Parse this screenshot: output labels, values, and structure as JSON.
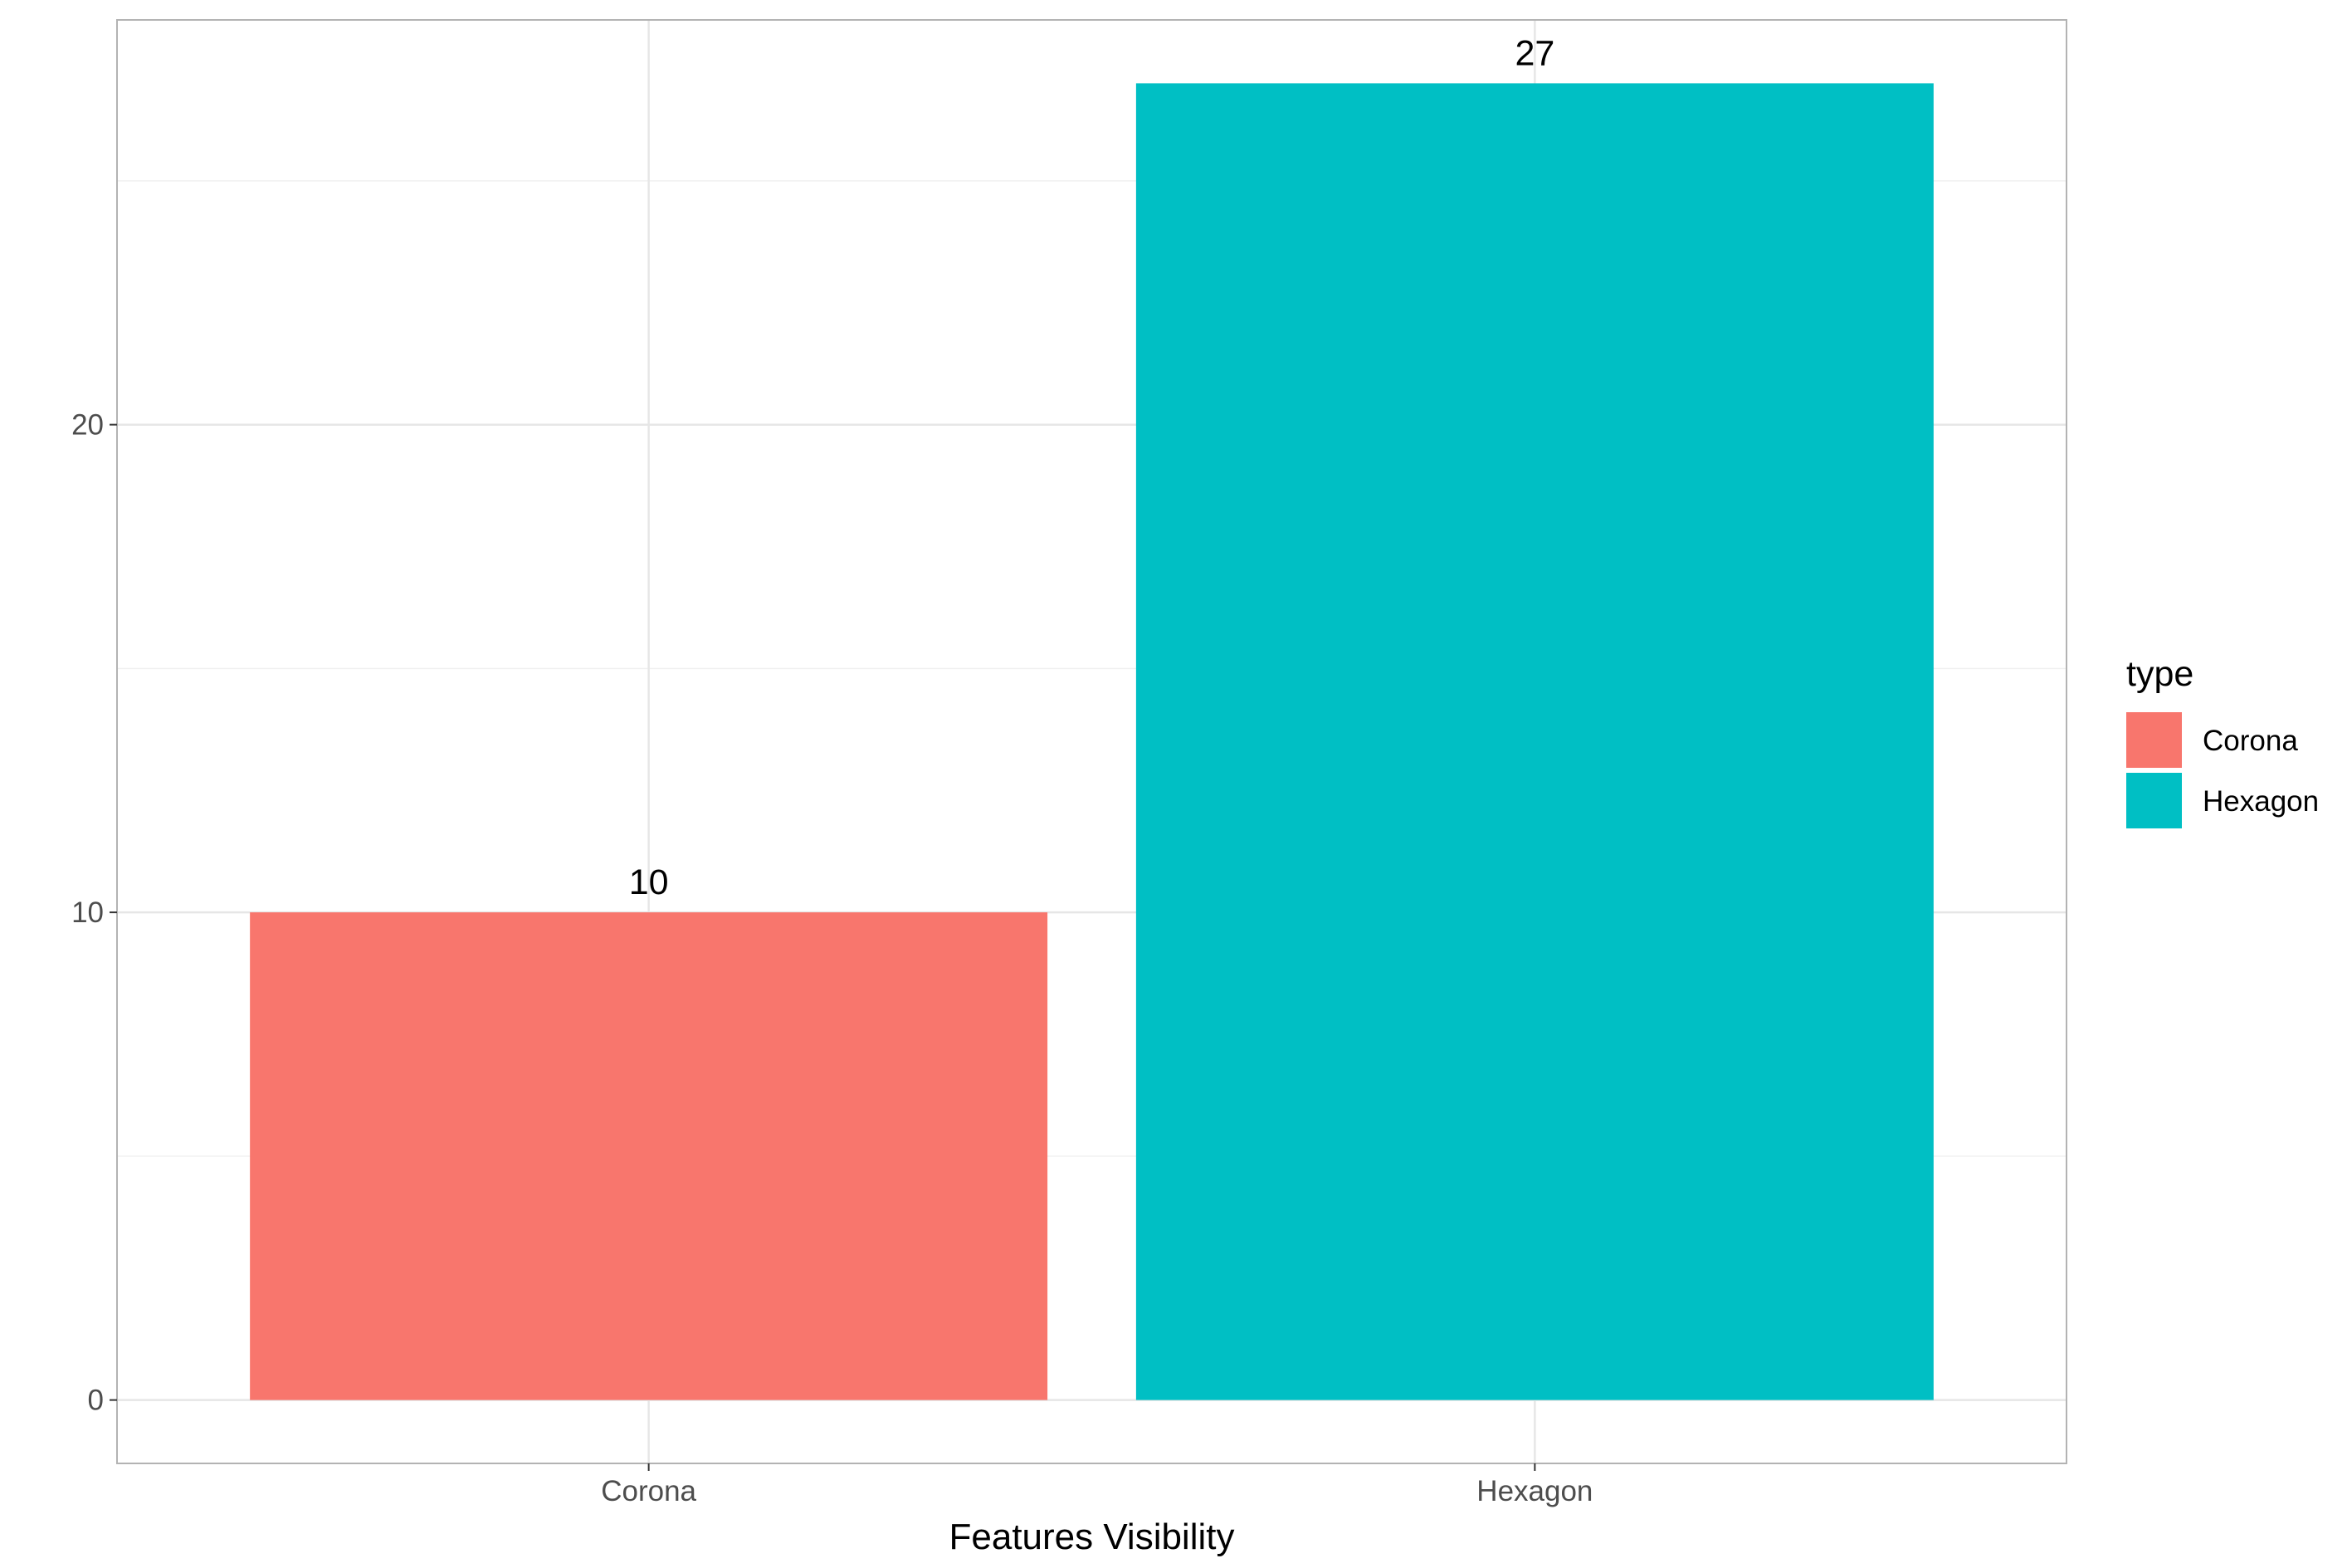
{
  "chart_data": {
    "type": "bar",
    "categories": [
      "Corona",
      "Hexagon"
    ],
    "values": [
      10,
      27
    ],
    "colors": [
      "#F8766D",
      "#00BFC4"
    ],
    "data_labels": [
      "10",
      "27"
    ],
    "title": "",
    "xlabel": "Features Visibility",
    "ylabel": "",
    "ylim": [
      -1.3,
      28.3
    ],
    "yticks": [
      0,
      10,
      20
    ],
    "ytick_labels": [
      "0",
      "10",
      "20"
    ],
    "xtick_labels": [
      "Corona",
      "Hexagon"
    ],
    "grid": true,
    "legend": {
      "title": "type",
      "position": "right",
      "entries": [
        {
          "label": "Corona",
          "color": "#F8766D"
        },
        {
          "label": "Hexagon",
          "color": "#00BFC4"
        }
      ]
    }
  }
}
